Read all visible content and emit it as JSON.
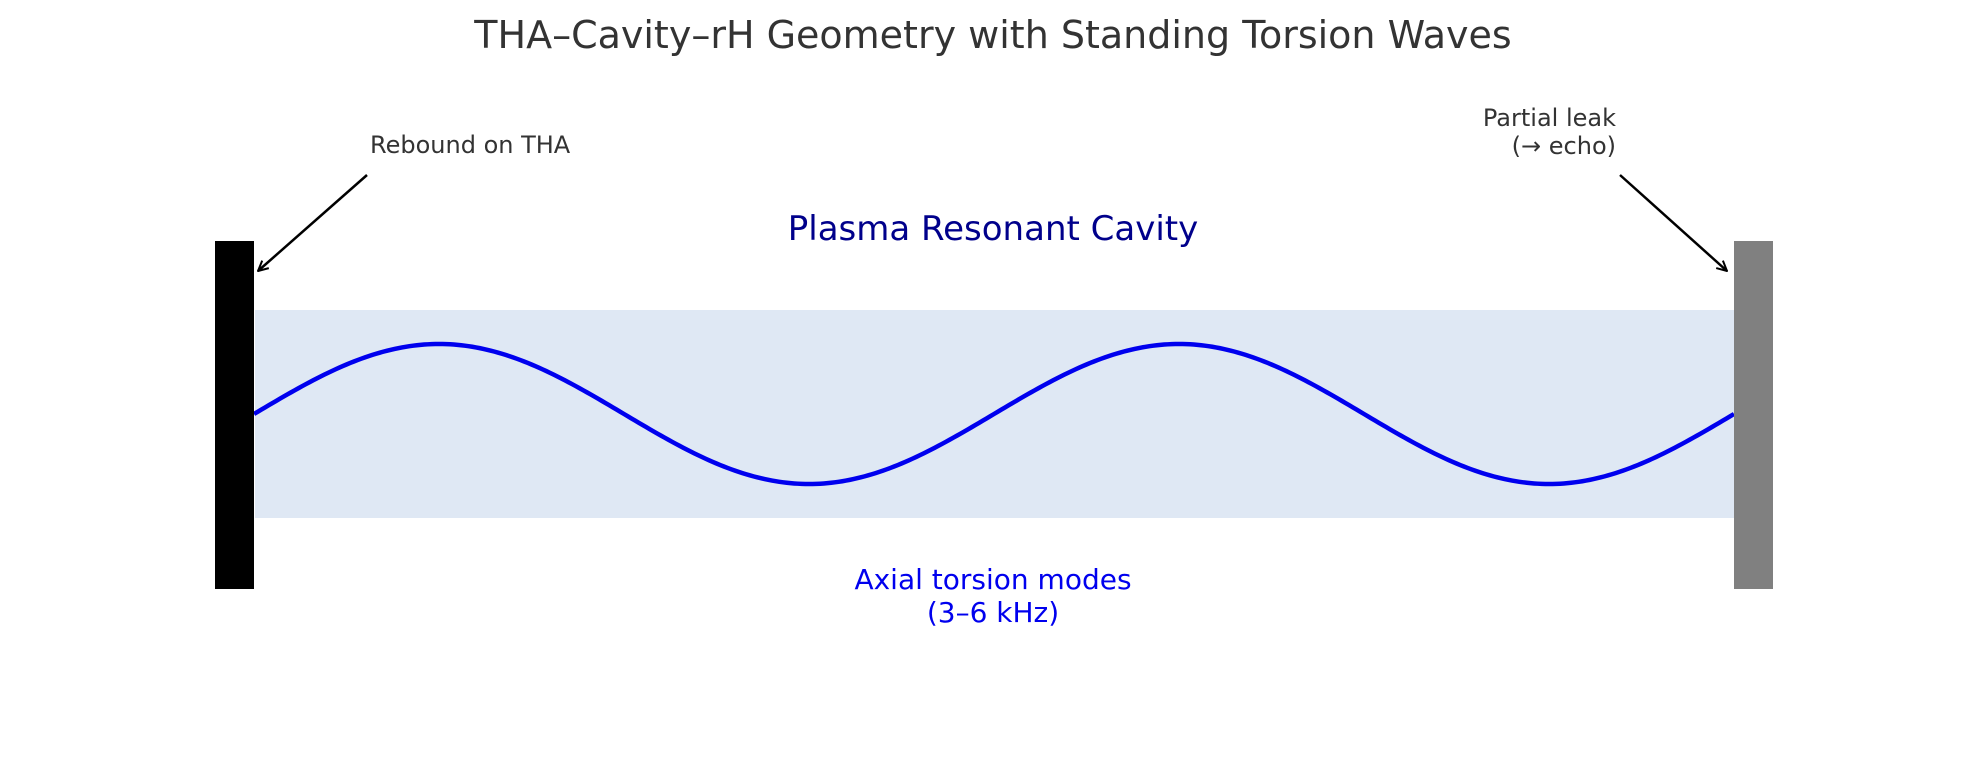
{
  "title": "THA–Cavity–rH Geometry with Standing Torsion Waves",
  "cavity_label": "Plasma Resonant Cavity",
  "modes_label_line1": "Axial torsion modes",
  "modes_label_line2": "(3–6 kHz)",
  "left_annotation": "Rebound on THA",
  "right_annotation_line1": "Partial leak",
  "right_annotation_line2": "(→ echo)",
  "colors": {
    "title": "#333333",
    "cavity_fill": "#dfe8f4",
    "cavity_label": "#00008b",
    "wave": "#0000ee",
    "modes_label": "#0000ee",
    "left_wall": "#000000",
    "right_wall": "#808080",
    "annotation": "#333333"
  },
  "wave": {
    "half_wavelengths": 4,
    "shape": "sine"
  }
}
